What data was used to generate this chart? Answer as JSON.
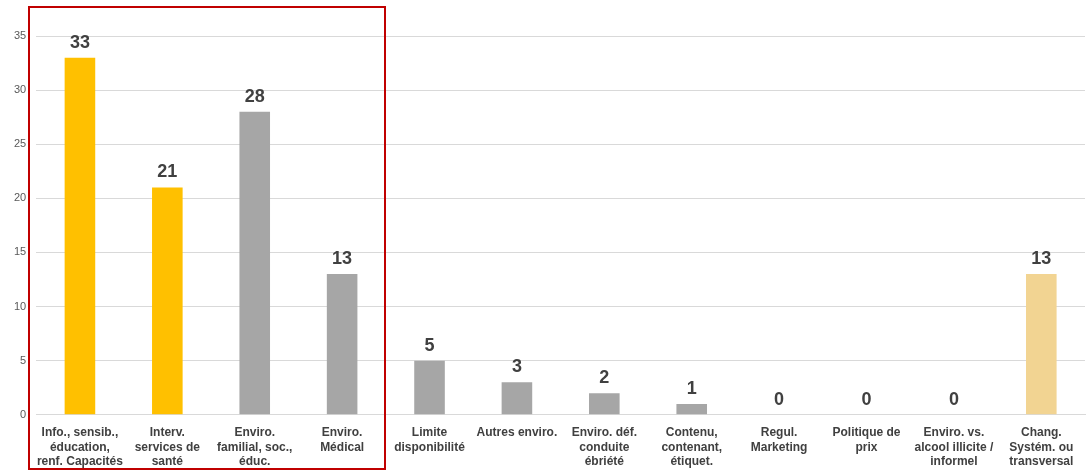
{
  "chart_data": {
    "type": "bar",
    "categories": [
      "Info., sensib.,\néducation,\nrenf. Capacités",
      "Interv.\nservices de\nsanté",
      "Enviro.\nfamilial, soc.,\néduc.",
      "Enviro.\nMédical",
      "Limite\ndisponibilité",
      "Autres enviro.",
      "Enviro. déf.\nconduite\nébriété",
      "Contenu,\ncontenant,\nétiquet.",
      "Regul.\nMarketing",
      "Politique de\nprix",
      "Enviro. vs.\nalcool illicite /\ninformel",
      "Chang.\nSystém. ou\ntransversal"
    ],
    "values": [
      33,
      21,
      28,
      13,
      5,
      3,
      2,
      1,
      0,
      0,
      0,
      13
    ],
    "colors": [
      "#ffc000",
      "#ffc000",
      "#a6a6a6",
      "#a6a6a6",
      "#a6a6a6",
      "#a6a6a6",
      "#a6a6a6",
      "#a6a6a6",
      "#a6a6a6",
      "#a6a6a6",
      "#a6a6a6",
      "#f2d492"
    ],
    "ylim": [
      0,
      35
    ],
    "yticks": [
      0,
      5,
      10,
      15,
      20,
      25,
      30,
      35
    ],
    "grid": "y",
    "legend": false,
    "data_labels": true
  }
}
